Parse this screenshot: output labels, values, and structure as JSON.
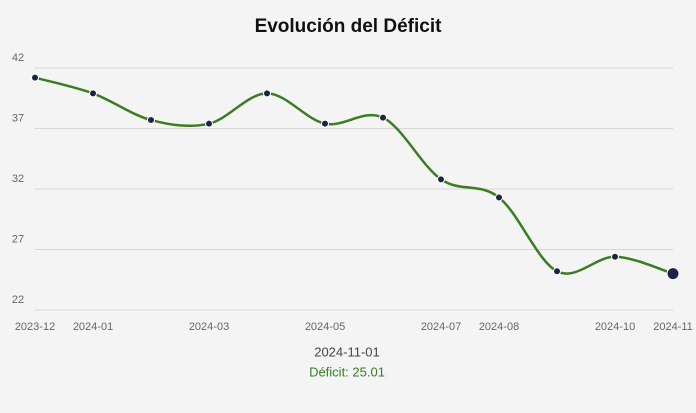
{
  "chart_data": {
    "type": "line",
    "title": "Evolución del Déficit",
    "categories": [
      "2023-12",
      "2024-01",
      null,
      "2024-03",
      null,
      "2024-05",
      null,
      "2024-07",
      "2024-08",
      null,
      "2024-10",
      "2024-11"
    ],
    "series": [
      {
        "name": "Déficit",
        "color": "#3a7d22",
        "marker_color": "#1f2247",
        "values": [
          41.2,
          39.9,
          37.7,
          37.4,
          39.9,
          37.4,
          37.9,
          32.8,
          31.3,
          25.2,
          26.4,
          25.01
        ]
      }
    ],
    "ylim": [
      22,
      42
    ],
    "yticks": [
      22,
      27,
      32,
      37,
      42
    ],
    "grid": true,
    "tooltip": {
      "title": "2024-11-01",
      "text": "Déficit: 25.01"
    }
  }
}
